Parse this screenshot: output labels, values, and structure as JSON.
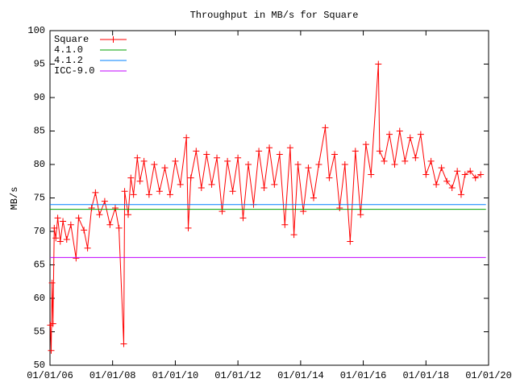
{
  "chart_data": {
    "type": "line",
    "title": "Throughput in MB/s for Square",
    "y_label": "MB/s",
    "xlim": [
      "2006-01-01",
      "2020-01-01"
    ],
    "xticks": [
      {
        "value": "2006-01-01",
        "label": "01/01/06"
      },
      {
        "value": "2008-01-01",
        "label": "01/01/08"
      },
      {
        "value": "2010-01-01",
        "label": "01/01/10"
      },
      {
        "value": "2012-01-01",
        "label": "01/01/12"
      },
      {
        "value": "2014-01-01",
        "label": "01/01/14"
      },
      {
        "value": "2016-01-01",
        "label": "01/01/16"
      },
      {
        "value": "2018-01-01",
        "label": "01/01/18"
      },
      {
        "value": "2020-01-01",
        "label": "01/01/20"
      }
    ],
    "ylim": [
      50,
      100
    ],
    "yticks": [
      50,
      55,
      60,
      65,
      70,
      75,
      80,
      85,
      90,
      95,
      100
    ],
    "grid": false,
    "legend": "top-left",
    "series": [
      {
        "name": "Square",
        "color": "#ff0000",
        "markers": true,
        "x": [
          "2006-01-05",
          "2006-01-15",
          "2006-01-25",
          "2006-02-05",
          "2006-02-20",
          "2006-03-10",
          "2006-04-01",
          "2006-05-01",
          "2006-06-01",
          "2006-07-15",
          "2006-09-01",
          "2006-11-01",
          "2006-12-01",
          "2007-02-01",
          "2007-03-15",
          "2007-05-01",
          "2007-06-15",
          "2007-08-01",
          "2007-10-01",
          "2007-12-01",
          "2008-02-01",
          "2008-03-15",
          "2008-05-10",
          "2008-05-20",
          "2008-07-01",
          "2008-08-01",
          "2008-09-01",
          "2008-10-15",
          "2008-11-15",
          "2009-01-01",
          "2009-03-01",
          "2009-05-01",
          "2009-07-01",
          "2009-09-01",
          "2009-11-01",
          "2010-01-01",
          "2010-03-01",
          "2010-05-10",
          "2010-06-01",
          "2010-07-01",
          "2010-09-01",
          "2010-11-01",
          "2011-01-01",
          "2011-03-01",
          "2011-05-01",
          "2011-07-01",
          "2011-09-01",
          "2011-11-01",
          "2012-01-01",
          "2012-03-01",
          "2012-05-01",
          "2012-07-01",
          "2012-09-01",
          "2012-11-01",
          "2013-01-01",
          "2013-03-01",
          "2013-05-01",
          "2013-07-01",
          "2013-09-01",
          "2013-10-15",
          "2013-12-01",
          "2014-02-01",
          "2014-04-01",
          "2014-06-01",
          "2014-08-01",
          "2014-10-15",
          "2014-12-01",
          "2015-02-01",
          "2015-04-01",
          "2015-06-01",
          "2015-08-01",
          "2015-10-01",
          "2015-12-01",
          "2016-02-01",
          "2016-04-01",
          "2016-06-25",
          "2016-07-10",
          "2016-09-01",
          "2016-11-01",
          "2017-01-01",
          "2017-03-01",
          "2017-05-01",
          "2017-07-01",
          "2017-09-01",
          "2017-11-01",
          "2018-01-01",
          "2018-03-01",
          "2018-05-01",
          "2018-07-01",
          "2018-09-01",
          "2018-11-01",
          "2019-01-01",
          "2019-02-15",
          "2019-04-01",
          "2019-06-01",
          "2019-08-01",
          "2019-10-01"
        ],
        "values": [
          56,
          52.2,
          62.3,
          56.2,
          70.5,
          69,
          72,
          68.5,
          71.5,
          68.8,
          71,
          66,
          72,
          70.2,
          67.5,
          73.5,
          75.8,
          72.5,
          74.5,
          71,
          73.5,
          70.5,
          53.2,
          76,
          72.5,
          78,
          75.5,
          81,
          77.5,
          80.5,
          75.5,
          80,
          76,
          79.5,
          75.5,
          80.5,
          77,
          84,
          70.5,
          78,
          82,
          76.5,
          81.5,
          77,
          81,
          73,
          80.5,
          76,
          81,
          72,
          80,
          74,
          82,
          76.5,
          82.5,
          77,
          81.5,
          71,
          82.5,
          69.5,
          80,
          73,
          79.5,
          75,
          80,
          85.5,
          78,
          81.5,
          73.5,
          80,
          68.5,
          82,
          72.5,
          83,
          78.5,
          95,
          82,
          80.5,
          84.5,
          80,
          85,
          80.5,
          84,
          81,
          84.5,
          78.5,
          80.5,
          77,
          79.5,
          77.5,
          76.5,
          79,
          75.5,
          78.5,
          79,
          78,
          78.5
        ]
      },
      {
        "name": "4.1.0",
        "color": "#00a000",
        "markers": false,
        "x": [
          "2006-01-01",
          "2019-12-01"
        ],
        "values": [
          73.3,
          73.3
        ]
      },
      {
        "name": "4.1.2",
        "color": "#0080ff",
        "markers": false,
        "x": [
          "2006-01-01",
          "2019-12-01"
        ],
        "values": [
          74,
          74
        ]
      },
      {
        "name": "ICC-9.0",
        "color": "#c000ff",
        "markers": false,
        "x": [
          "2006-01-01",
          "2019-12-01"
        ],
        "values": [
          66.1,
          66.1
        ]
      }
    ]
  }
}
